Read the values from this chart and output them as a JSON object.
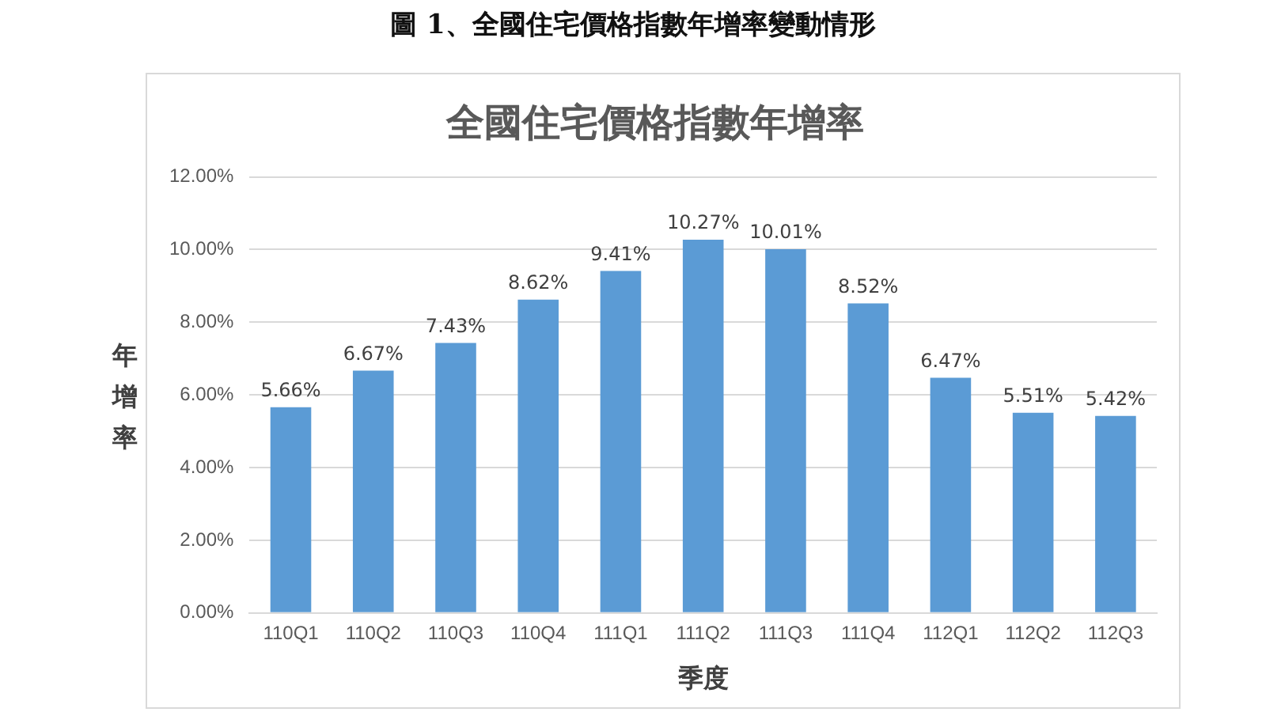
{
  "chart_data": {
    "type": "bar",
    "title": "全國住宅價格指數年增率",
    "annotations": [
      "圖 1、全國住宅價格指數年增率變動情形"
    ],
    "xlabel": "季度",
    "ylabel": "年增率",
    "categories": [
      "110Q1",
      "110Q2",
      "110Q3",
      "110Q4",
      "111Q1",
      "111Q2",
      "111Q3",
      "111Q4",
      "112Q1",
      "112Q2",
      "112Q3"
    ],
    "values": [
      5.66,
      6.67,
      7.43,
      8.62,
      9.41,
      10.27,
      10.01,
      8.52,
      6.47,
      5.51,
      5.42
    ],
    "value_labels": [
      "5.66%",
      "6.67%",
      "7.43%",
      "8.62%",
      "9.41%",
      "10.27%",
      "10.01%",
      "8.52%",
      "6.47%",
      "5.51%",
      "5.42%"
    ],
    "color": "#5b9bd5",
    "ylim": [
      0,
      12
    ],
    "yticks": [
      {
        "value": 0,
        "label": "0.00%"
      },
      {
        "value": 2,
        "label": "2.00%"
      },
      {
        "value": 4,
        "label": "4.00%"
      },
      {
        "value": 6,
        "label": "6.00%"
      },
      {
        "value": 8,
        "label": "8.00%"
      },
      {
        "value": 10,
        "label": "10.00%"
      },
      {
        "value": 12,
        "label": "12.00%"
      }
    ],
    "grid": "y",
    "legend": false
  }
}
